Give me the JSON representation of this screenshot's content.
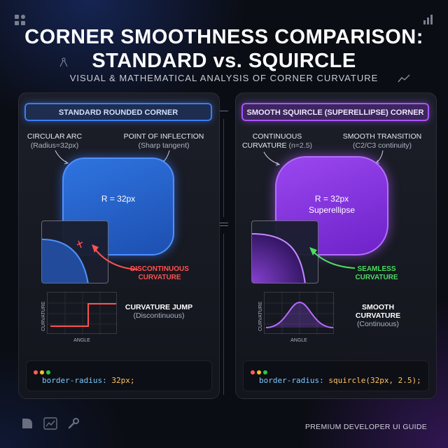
{
  "header": {
    "title_line1": "CORNER SMOOTHNESS COMPARISON:",
    "title_line2": "STANDARD vs. SQUIRCLE",
    "subtitle": "VISUAL & MATHEMATICAL ANALYSIS OF CORNER CURVATURE"
  },
  "left": {
    "tab": "STANDARD ROUNDED CORNER",
    "label1": "CIRCULAR ARC",
    "label1_sub": "(Radius=32px)",
    "label2": "POINT OF INFLECTION",
    "label2_sub": "(Sharp tangent)",
    "shape_text": "R = 32px",
    "callout_line1": "DISCONTINUOUS",
    "callout_line2": "CURVATURE",
    "ylabel": "CURVATURE",
    "xlabel": "ANGLE",
    "curve_title": "CURVATURE JUMP",
    "curve_sub": "(Discontinuous)",
    "code_prop": "border-radius:",
    "code_val": "32px;"
  },
  "right": {
    "tab": "SMOOTH SQUIRCLE (SUPERELLIPSE) CORNER",
    "label1": "CONTINUOUS",
    "label1b": "CURVATURE",
    "label1_sub": "(n=2.5)",
    "label2": "SMOOTH TRANSITION",
    "label2_sub": "(C2/C3 continuity)",
    "shape_text1": "R = 32px",
    "shape_text2": "Superellipse",
    "callout_line1": "SEAMLESS",
    "callout_line2": "CURVATURE",
    "ylabel": "CURVATURE",
    "xlabel": "ANGLE",
    "curve_title": "SMOOTH CURVATURE",
    "curve_sub": "(Continuous)",
    "code_prop": "border-radius:",
    "code_val": "squircle(32px, 2.5);"
  },
  "footer": {
    "text": "PREMIUM DEVELOPER UI GUIDE"
  },
  "colors": {
    "blue": "#3b7df0",
    "purple": "#a855f7",
    "red": "#ff5252",
    "green": "#4cdc62"
  }
}
